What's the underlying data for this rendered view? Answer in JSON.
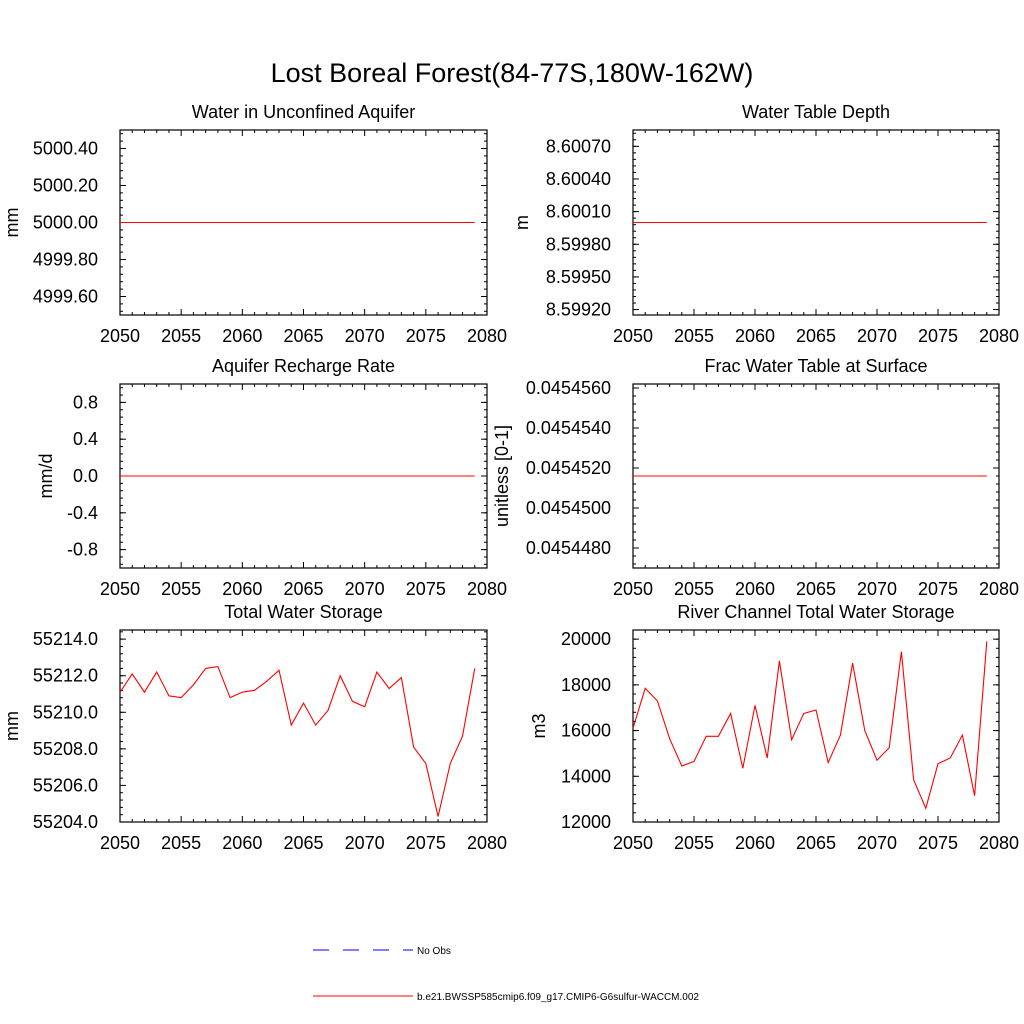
{
  "figure": {
    "title": "Lost Boreal Forest(84-77S,180W-162W)"
  },
  "legend": {
    "entries": [
      {
        "label": "No Obs",
        "color": "#0000ff",
        "dashed": true
      },
      {
        "label": "b.e21.BWSSP585cmip6.f09_g17.CMIP6-G6sulfur-WACCM.002",
        "color": "#ff0000",
        "dashed": false
      }
    ]
  },
  "chart_data": [
    {
      "type": "line",
      "title": "Water in Unconfined Aquifer",
      "ylabel": "mm",
      "xlabel": "",
      "xlim": [
        2050,
        2080
      ],
      "ylim": [
        4999.5,
        5000.5
      ],
      "xticks": [
        2050,
        2055,
        2060,
        2065,
        2070,
        2075,
        2080
      ],
      "xtick_labels": [
        "2050",
        "2055",
        "2060",
        "2065",
        "2070",
        "2075",
        "2080"
      ],
      "yticks": [
        4999.6,
        4999.8,
        5000.0,
        5000.2,
        5000.4
      ],
      "ytick_labels": [
        "4999.60",
        "4999.80",
        "5000.00",
        "5000.20",
        "5000.40"
      ],
      "x": [
        2050,
        2079
      ],
      "values": [
        5000.0,
        5000.0
      ]
    },
    {
      "type": "line",
      "title": "Water Table Depth",
      "ylabel": "m",
      "xlabel": "",
      "xlim": [
        2050,
        2080
      ],
      "ylim": [
        8.59915,
        8.60085
      ],
      "xticks": [
        2050,
        2055,
        2060,
        2065,
        2070,
        2075,
        2080
      ],
      "xtick_labels": [
        "2050",
        "2055",
        "2060",
        "2065",
        "2070",
        "2075",
        "2080"
      ],
      "yticks": [
        8.5992,
        8.5995,
        8.5998,
        8.6001,
        8.6004,
        8.6007
      ],
      "ytick_labels": [
        "8.59920",
        "8.59950",
        "8.59980",
        "8.60010",
        "8.60040",
        "8.60070"
      ],
      "x": [
        2050,
        2079
      ],
      "values": [
        8.6,
        8.6
      ]
    },
    {
      "type": "line",
      "title": "Aquifer Recharge Rate",
      "ylabel": "mm/d",
      "xlabel": "",
      "xlim": [
        2050,
        2080
      ],
      "ylim": [
        -1.0,
        1.0
      ],
      "xticks": [
        2050,
        2055,
        2060,
        2065,
        2070,
        2075,
        2080
      ],
      "xtick_labels": [
        "2050",
        "2055",
        "2060",
        "2065",
        "2070",
        "2075",
        "2080"
      ],
      "yticks": [
        -0.8,
        -0.4,
        0.0,
        0.4,
        0.8
      ],
      "ytick_labels": [
        "-0.8",
        "-0.4",
        "0.0",
        "0.4",
        "0.8"
      ],
      "x": [
        2050,
        2079
      ],
      "values": [
        0.0,
        0.0
      ]
    },
    {
      "type": "line",
      "title": "Frac Water Table at Surface",
      "ylabel": "unitless [0-1]",
      "xlabel": "",
      "xlim": [
        2050,
        2080
      ],
      "ylim": [
        0.045447,
        0.0454562
      ],
      "xticks": [
        2050,
        2055,
        2060,
        2065,
        2070,
        2075,
        2080
      ],
      "xtick_labels": [
        "2050",
        "2055",
        "2060",
        "2065",
        "2070",
        "2075",
        "2080"
      ],
      "yticks": [
        0.045448,
        0.04545,
        0.045452,
        0.045454,
        0.045456
      ],
      "ytick_labels": [
        "0.0454480",
        "0.0454500",
        "0.0454520",
        "0.0454540",
        "0.0454560"
      ],
      "x": [
        2050,
        2079
      ],
      "values": [
        0.0454516,
        0.0454516
      ]
    },
    {
      "type": "line",
      "title": "Total Water Storage",
      "ylabel": "mm",
      "xlabel": "",
      "xlim": [
        2050,
        2080
      ],
      "ylim": [
        55204.0,
        55214.5
      ],
      "xticks": [
        2050,
        2055,
        2060,
        2065,
        2070,
        2075,
        2080
      ],
      "xtick_labels": [
        "2050",
        "2055",
        "2060",
        "2065",
        "2070",
        "2075",
        "2080"
      ],
      "yticks": [
        55204.0,
        55206.0,
        55208.0,
        55210.0,
        55212.0,
        55214.0
      ],
      "ytick_labels": [
        "55204.0",
        "55206.0",
        "55208.0",
        "55210.0",
        "55212.0",
        "55214.0"
      ],
      "x": [
        2050,
        2051,
        2052,
        2053,
        2054,
        2055,
        2056,
        2057,
        2058,
        2059,
        2060,
        2061,
        2062,
        2063,
        2064,
        2065,
        2066,
        2067,
        2068,
        2069,
        2070,
        2071,
        2072,
        2073,
        2074,
        2075,
        2076,
        2077,
        2078,
        2079
      ],
      "values": [
        55211.1,
        55212.1,
        55211.1,
        55212.2,
        55210.9,
        55210.8,
        55211.5,
        55212.4,
        55212.5,
        55210.8,
        55211.1,
        55211.2,
        55211.7,
        55212.3,
        55209.3,
        55210.5,
        55209.3,
        55210.1,
        55212.0,
        55210.6,
        55210.3,
        55212.2,
        55211.3,
        55211.9,
        55208.1,
        55207.2,
        55204.3,
        55207.2,
        55208.7,
        55212.4
      ]
    },
    {
      "type": "line",
      "title": "River Channel Total Water Storage",
      "ylabel": "m3",
      "xlabel": "",
      "xlim": [
        2050,
        2080
      ],
      "ylim": [
        12000,
        20400
      ],
      "xticks": [
        2050,
        2055,
        2060,
        2065,
        2070,
        2075,
        2080
      ],
      "xtick_labels": [
        "2050",
        "2055",
        "2060",
        "2065",
        "2070",
        "2075",
        "2080"
      ],
      "yticks": [
        12000,
        14000,
        16000,
        18000,
        20000
      ],
      "ytick_labels": [
        "12000",
        "14000",
        "16000",
        "18000",
        "20000"
      ],
      "x": [
        2050,
        2051,
        2052,
        2053,
        2054,
        2055,
        2056,
        2057,
        2058,
        2059,
        2060,
        2061,
        2062,
        2063,
        2064,
        2065,
        2066,
        2067,
        2068,
        2069,
        2070,
        2071,
        2072,
        2073,
        2074,
        2075,
        2076,
        2077,
        2078,
        2079
      ],
      "values": [
        16100,
        17850,
        17300,
        15650,
        14450,
        14650,
        15750,
        15750,
        16750,
        14350,
        17100,
        14800,
        19050,
        15600,
        16750,
        16900,
        14600,
        15800,
        18950,
        16000,
        14700,
        15250,
        19450,
        13850,
        12600,
        14550,
        14800,
        15800,
        13150,
        19900
      ]
    }
  ]
}
